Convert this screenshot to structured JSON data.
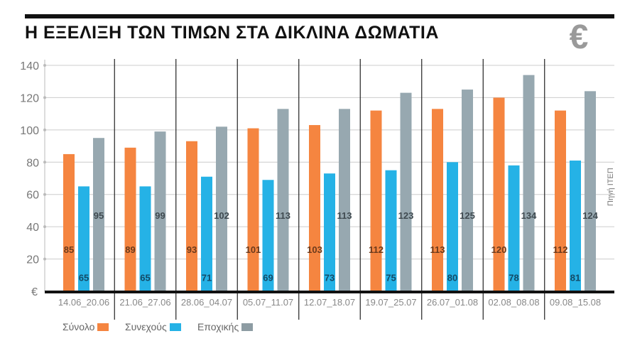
{
  "title": "Η ΕΞΕΛΙΞΗ ΤΩΝ ΤΙΜΩΝ ΣΤΑ ΔΙΚΛΙΝΑ ΔΩΜΑΤΙΑ",
  "source": "Πηγή ΙΤΕΠ",
  "icon": "euro-icon",
  "chart_data": {
    "type": "bar",
    "title": "Η ΕΞΕΛΙΞΗ ΤΩΝ ΤΙΜΩΝ ΣΤΑ ΔΙΚΛΙΝΑ ΔΩΜΑΤΙΑ",
    "ylabel": "€",
    "ylim": [
      0,
      140
    ],
    "yticks": [
      20,
      40,
      60,
      80,
      100,
      120,
      140
    ],
    "grid": true,
    "legend": "bottom-left",
    "categories": [
      "14.06_20.06",
      "21.06_27.06",
      "28.06_04.07",
      "05.07_11.07",
      "12.07_18.07",
      "19.07_25.07",
      "26.07_01.08",
      "02.08_08.08",
      "09.08_15.08"
    ],
    "series": [
      {
        "name": "Σύνολο",
        "color": "#f58540",
        "labelColor": "#6b3a1c",
        "values": [
          85,
          89,
          93,
          101,
          103,
          112,
          113,
          120,
          112
        ]
      },
      {
        "name": "Συνεχούς",
        "color": "#25b2e6",
        "labelColor": "#134a66",
        "values": [
          65,
          65,
          71,
          69,
          73,
          75,
          80,
          78,
          81
        ]
      },
      {
        "name": "Εποχικής",
        "color": "#97a8b0",
        "labelColor": "#3f4a50",
        "values": [
          95,
          99,
          102,
          113,
          113,
          123,
          125,
          134,
          124
        ]
      }
    ]
  }
}
